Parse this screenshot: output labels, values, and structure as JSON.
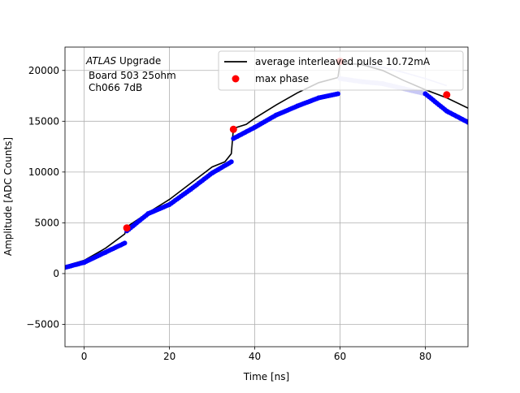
{
  "chart_data": {
    "type": "line",
    "title": "",
    "xlabel": "Time [ns]",
    "ylabel": "Amplitude [ADC Counts]",
    "xlim": [
      -4.5,
      90
    ],
    "ylim": [
      -7200,
      22300
    ],
    "xticks": [
      0,
      20,
      40,
      60,
      80
    ],
    "yticks": [
      -5000,
      0,
      5000,
      10000,
      15000,
      20000
    ],
    "grid": true,
    "legend_position": "top-right",
    "annotation": {
      "experiment": "ATLAS",
      "line1_suffix": " Upgrade",
      "line2": "Board 503 25ohm",
      "line3": "Ch066 7dB"
    },
    "series": [
      {
        "name": "average interleaved pulse 10.72mA",
        "color": "#000000",
        "x": [
          -4.5,
          0,
          5,
          9.5,
          10,
          15,
          20,
          25,
          30,
          33,
          34.5,
          35,
          38,
          40,
          45,
          50,
          55,
          59.5,
          60,
          65,
          70,
          75,
          80,
          85,
          90
        ],
        "y": [
          750,
          1300,
          2500,
          3900,
          4600,
          6000,
          7300,
          8900,
          10500,
          11000,
          11800,
          14300,
          14700,
          15300,
          16600,
          17800,
          18800,
          19300,
          20700,
          20600,
          20000,
          19000,
          18100,
          17300,
          16300
        ]
      },
      {
        "name": "",
        "color": "#c8c8f2",
        "x": [
          60,
          65,
          70,
          75,
          80,
          85
        ],
        "y": [
          20700,
          20600,
          20300,
          19800,
          19200,
          18500
        ]
      },
      {
        "name": "",
        "color": "#0000ff",
        "x": [
          -4.5,
          0,
          5,
          9.5,
          10,
          15,
          20,
          25,
          30,
          34.5,
          35,
          40,
          45,
          50,
          55,
          59.5,
          60,
          65,
          70,
          75,
          80,
          85,
          90
        ],
        "y": [
          600,
          1100,
          2100,
          3000,
          4200,
          5900,
          6800,
          8300,
          9900,
          11000,
          13300,
          14400,
          15600,
          16500,
          17300,
          17700,
          19200,
          18900,
          18700,
          18200,
          17700,
          16000,
          14900
        ]
      },
      {
        "name": "max phase",
        "color": "#ff0000",
        "x": [
          10,
          35,
          60,
          85
        ],
        "y": [
          4500,
          14200,
          20900,
          17600
        ]
      }
    ]
  }
}
